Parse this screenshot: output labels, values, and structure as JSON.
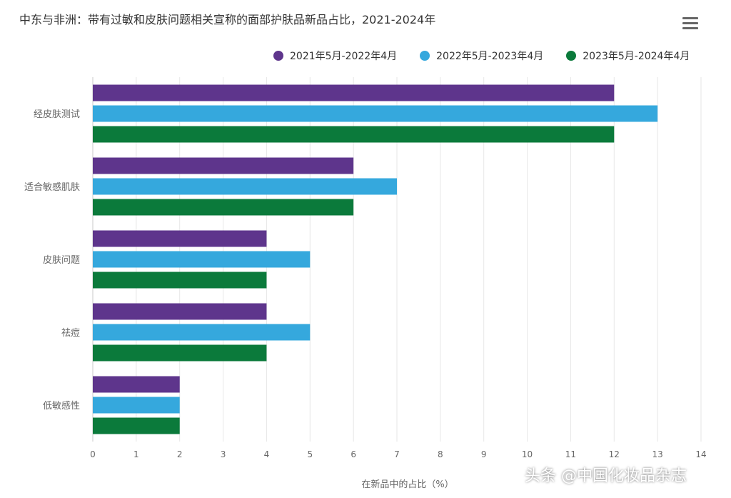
{
  "title": "中东与非洲：带有过敏和皮肤问题相关宣称的面部护肤品新品占比，2021-2024年",
  "menu_icon": "hamburger-menu-icon",
  "watermark": "头条 @中国化妆品杂志",
  "chart_data": {
    "type": "bar",
    "orientation": "horizontal",
    "title": "中东与非洲：带有过敏和皮肤问题相关宣称的面部护肤品新品占比，2021-2024年",
    "xlabel": "在新品中的占比（%）",
    "ylabel": "",
    "xlim": [
      0,
      14
    ],
    "xticks": [
      "0",
      "1",
      "2",
      "3",
      "4",
      "5",
      "6",
      "7",
      "8",
      "9",
      "10",
      "11",
      "12",
      "13",
      "14"
    ],
    "grid": true,
    "legend_position": "top-right",
    "categories": [
      "经皮肤测试",
      "适合敏感肌肤",
      "皮肤问题",
      "祛痘",
      "低敏感性"
    ],
    "series": [
      {
        "name": "2021年5月-2022年4月",
        "color": "#5e358c",
        "values": [
          12,
          6,
          4,
          4,
          2
        ]
      },
      {
        "name": "2022年5月-2023年4月",
        "color": "#35a8dd",
        "values": [
          13,
          7,
          5,
          5,
          2
        ]
      },
      {
        "name": "2023年5月-2024年4月",
        "color": "#0b7a3b",
        "values": [
          12,
          6,
          4,
          4,
          2
        ]
      }
    ]
  }
}
